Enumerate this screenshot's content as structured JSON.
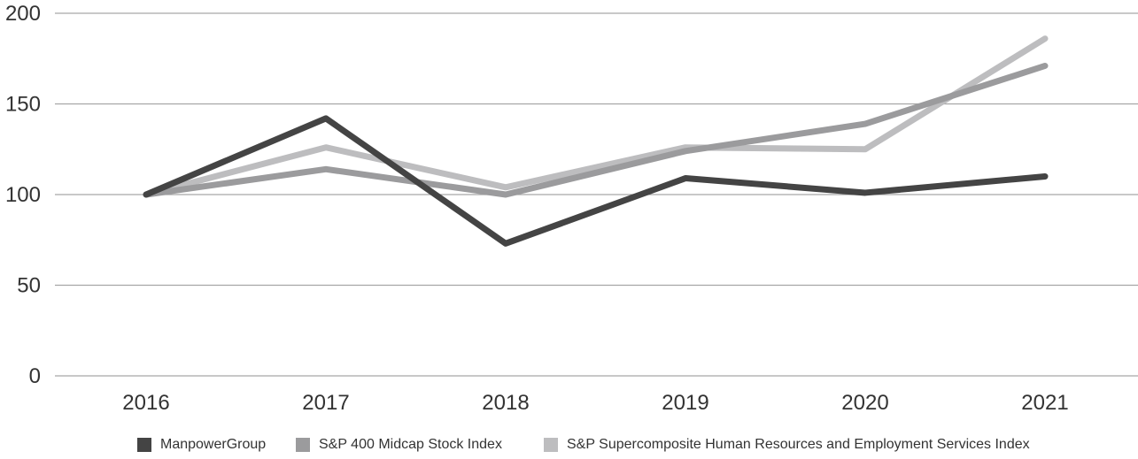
{
  "chart_data": {
    "type": "line",
    "categories": [
      "2016",
      "2017",
      "2018",
      "2019",
      "2020",
      "2021"
    ],
    "ylim": [
      0,
      200
    ],
    "yticks": [
      "0",
      "50",
      "100",
      "150",
      "200"
    ],
    "grid": true,
    "legend_position": "bottom",
    "series": [
      {
        "name": "ManpowerGroup",
        "color": "#444444",
        "values": [
          100,
          142,
          73,
          109,
          101,
          110
        ]
      },
      {
        "name": "S&P 400 Midcap Stock Index",
        "color": "#9b9b9d",
        "values": [
          100,
          114,
          100,
          124,
          139,
          171
        ]
      },
      {
        "name": "S&P Supercomposite Human Resources and Employment Services Index",
        "color": "#bdbdbf",
        "values": [
          100,
          126,
          104,
          126,
          125,
          186
        ]
      }
    ]
  }
}
